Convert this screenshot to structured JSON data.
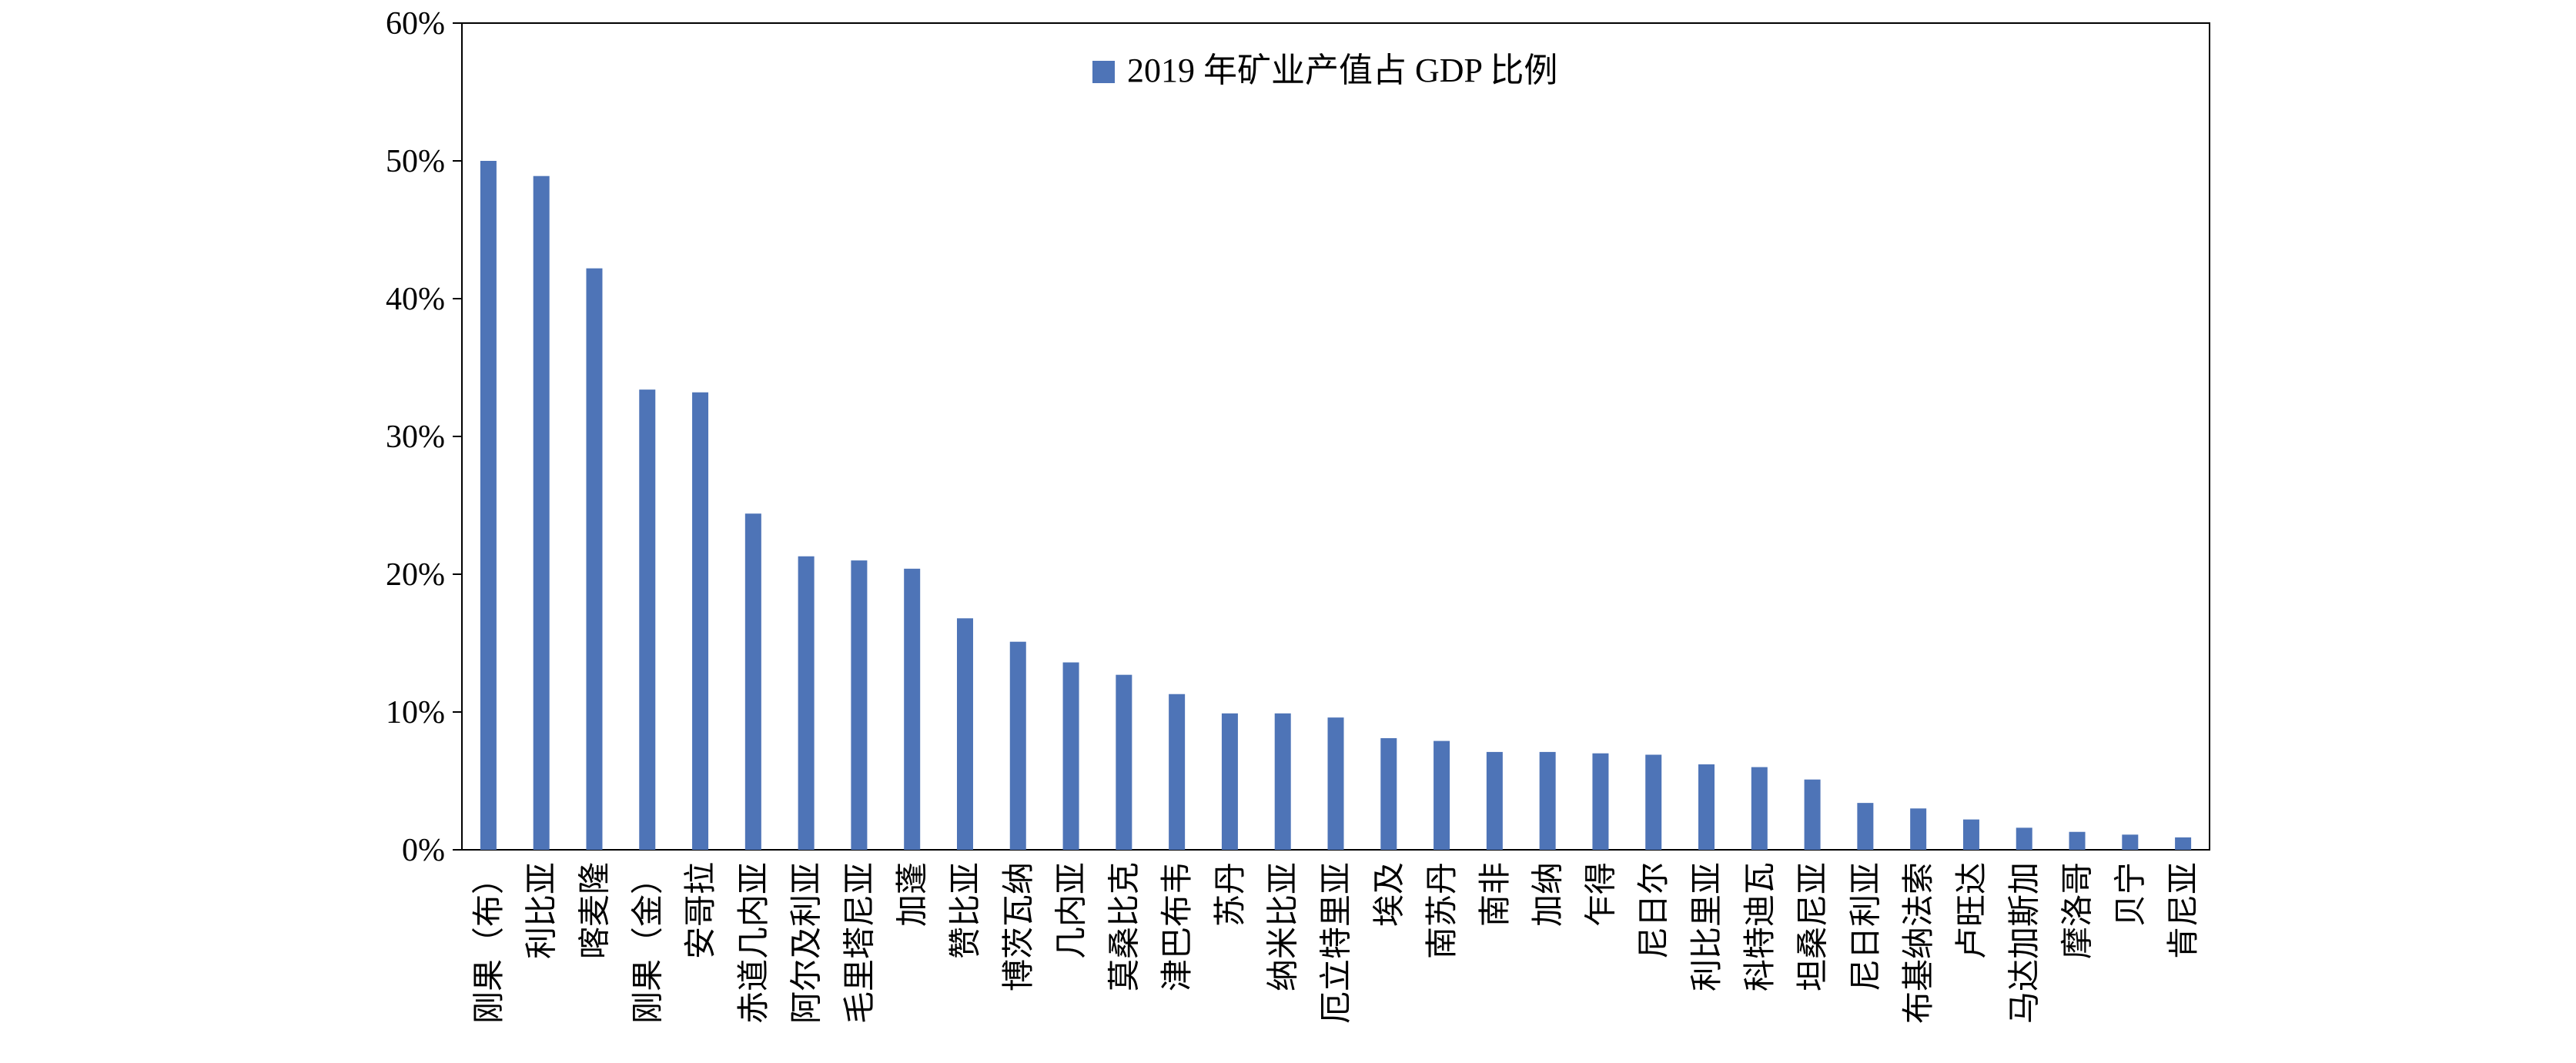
{
  "chart_data": {
    "type": "bar",
    "title": "",
    "xlabel": "",
    "ylabel": "",
    "ylim": [
      0,
      0.6
    ],
    "yticks": [
      "0%",
      "10%",
      "20%",
      "30%",
      "40%",
      "50%",
      "60%"
    ],
    "grid": false,
    "legend_position": "top-center",
    "colors": {
      "bar": "#4E74B7",
      "axis": "#000000"
    },
    "categories": [
      "刚果（布）",
      "利比亚",
      "喀麦隆",
      "刚果（金）",
      "安哥拉",
      "赤道几内亚",
      "阿尔及利亚",
      "毛里塔尼亚",
      "加蓬",
      "赞比亚",
      "博茨瓦纳",
      "几内亚",
      "莫桑比克",
      "津巴布韦",
      "苏丹",
      "纳米比亚",
      "厄立特里亚",
      "埃及",
      "南苏丹",
      "南非",
      "加纳",
      "乍得",
      "尼日尔",
      "利比里亚",
      "科特迪瓦",
      "坦桑尼亚",
      "尼日利亚",
      "布基纳法索",
      "卢旺达",
      "马达加斯加",
      "摩洛哥",
      "贝宁",
      "肯尼亚"
    ],
    "series": [
      {
        "name": "2019 年矿业产值占 GDP 比例",
        "values": [
          0.5,
          0.489,
          0.422,
          0.334,
          0.332,
          0.244,
          0.213,
          0.21,
          0.204,
          0.168,
          0.151,
          0.136,
          0.127,
          0.113,
          0.099,
          0.099,
          0.096,
          0.081,
          0.079,
          0.071,
          0.071,
          0.07,
          0.069,
          0.062,
          0.06,
          0.051,
          0.034,
          0.03,
          0.022,
          0.016,
          0.013,
          0.011,
          0.009
        ]
      }
    ]
  }
}
